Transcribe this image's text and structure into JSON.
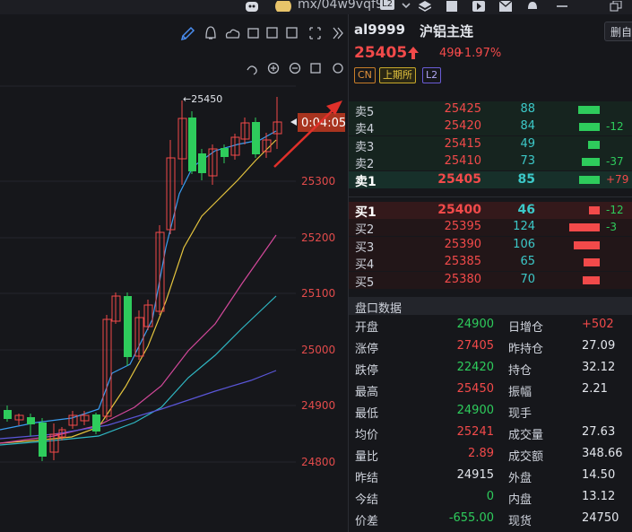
{
  "topbar": {
    "username": "mx/04w9vqf9",
    "badge": "L2"
  },
  "chart": {
    "price_labels": [
      "25300",
      "25200",
      "25100",
      "25000",
      "24900",
      "24800"
    ],
    "high_marker": "←25450",
    "countdown": "0:04:05"
  },
  "quote": {
    "symbol": "al9999",
    "name": "沪铝主连",
    "delete_label": "删自",
    "price": "25405",
    "change": "490",
    "change_pct": "+1.97%",
    "tags": [
      "CN",
      "上期所",
      "L2"
    ]
  },
  "orderbook": {
    "asks": [
      {
        "label": "卖5",
        "price": "25425",
        "vol": "88",
        "delta": "",
        "bar": 0.55
      },
      {
        "label": "卖4",
        "price": "25420",
        "vol": "84",
        "delta": "-12",
        "bar": 0.52
      },
      {
        "label": "卖3",
        "price": "25415",
        "vol": "49",
        "delta": "",
        "bar": 0.3
      },
      {
        "label": "卖2",
        "price": "25410",
        "vol": "73",
        "delta": "-37",
        "bar": 0.45
      },
      {
        "label": "卖1",
        "price": "25405",
        "vol": "85",
        "delta": "+79",
        "bar": 0.53
      }
    ],
    "bids": [
      {
        "label": "买1",
        "price": "25400",
        "vol": "46",
        "delta": "-12",
        "bar": 0.28
      },
      {
        "label": "买2",
        "price": "25395",
        "vol": "124",
        "delta": "-3",
        "bar": 0.77
      },
      {
        "label": "买3",
        "price": "25390",
        "vol": "106",
        "delta": "",
        "bar": 0.66
      },
      {
        "label": "买4",
        "price": "25385",
        "vol": "65",
        "delta": "",
        "bar": 0.4
      },
      {
        "label": "买5",
        "price": "25380",
        "vol": "70",
        "delta": "",
        "bar": 0.43
      }
    ]
  },
  "stats_title": "盘口数据",
  "stats_left": [
    {
      "k": "开盘",
      "v": "24900",
      "c": "#2ecc5c"
    },
    {
      "k": "涨停",
      "v": "27405",
      "c": "#f24a4a"
    },
    {
      "k": "跌停",
      "v": "22420",
      "c": "#2ecc5c"
    },
    {
      "k": "最高",
      "v": "25450",
      "c": "#f24a4a"
    },
    {
      "k": "最低",
      "v": "24900",
      "c": "#2ecc5c"
    },
    {
      "k": "均价",
      "v": "25241",
      "c": "#f24a4a"
    },
    {
      "k": "量比",
      "v": "2.89",
      "c": "#f24a4a"
    },
    {
      "k": "昨结",
      "v": "24915",
      "c": "#e3e6ec"
    },
    {
      "k": "今结",
      "v": "0",
      "c": "#2ecc5c"
    },
    {
      "k": "价差",
      "v": "-655.00",
      "c": "#2ecc5c"
    }
  ],
  "stats_right": [
    {
      "k": "日增仓",
      "v": "+502",
      "c": "#f24a4a"
    },
    {
      "k": "昨持仓",
      "v": "27.09",
      "c": "#e3e6ec"
    },
    {
      "k": "持仓",
      "v": "32.12",
      "c": "#e3e6ec"
    },
    {
      "k": "振幅",
      "v": "2.21",
      "c": "#e3e6ec"
    },
    {
      "k": "现手",
      "v": "",
      "c": "#e3e6ec"
    },
    {
      "k": "成交量",
      "v": "27.63",
      "c": "#e3e6ec"
    },
    {
      "k": "成交额",
      "v": "348.66",
      "c": "#e3e6ec"
    },
    {
      "k": "外盘",
      "v": "14.50",
      "c": "#e3e6ec"
    },
    {
      "k": "内盘",
      "v": "13.12",
      "c": "#e3e6ec"
    },
    {
      "k": "现货",
      "v": "24750",
      "c": "#e3e6ec"
    }
  ],
  "colors": {
    "up": "#f24a4a",
    "down": "#2ecc5c",
    "vol": "#3cc8c8"
  }
}
